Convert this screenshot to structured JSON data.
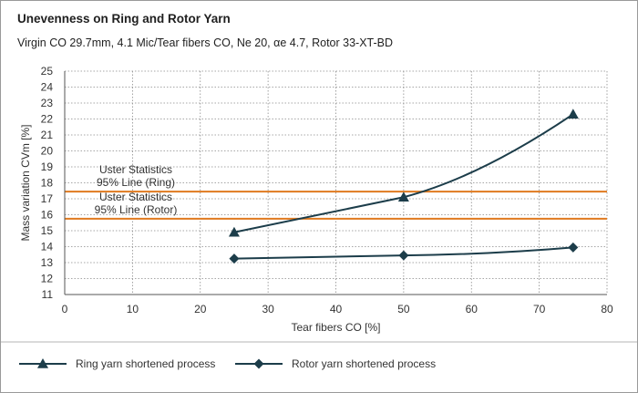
{
  "title": "Unevenness on Ring and Rotor Yarn",
  "subtitle": "Virgin CO 29.7mm, 4.1 Mic/Tear fibers CO, Ne 20, αe 4.7, Rotor 33-XT-BD",
  "chart_data": {
    "type": "line",
    "title": "Unevenness on Ring and Rotor Yarn",
    "subtitle": "Virgin CO 29.7mm, 4.1 Mic/Tear fibers CO, Ne 20, αe 4.7, Rotor 33-XT-BD",
    "xlabel": "Tear fibers CO [%]",
    "ylabel": "Mass variation CVm [%]",
    "xlim": [
      0,
      80
    ],
    "ylim": [
      11,
      25
    ],
    "xticks": [
      0,
      10,
      20,
      30,
      40,
      50,
      60,
      70,
      80
    ],
    "yticks": [
      11,
      12,
      13,
      14,
      15,
      16,
      17,
      18,
      19,
      20,
      21,
      22,
      23,
      24,
      25
    ],
    "grid": "dotted",
    "legend_position": "bottom",
    "series": [
      {
        "name": "Ring yarn shortened process",
        "marker": "triangle",
        "color": "#1c3d4a",
        "x": [
          25,
          50,
          75
        ],
        "y": [
          14.9,
          17.1,
          22.3
        ]
      },
      {
        "name": "Rotor yarn shortened process",
        "marker": "diamond",
        "color": "#1c3d4a",
        "x": [
          25,
          50,
          75
        ],
        "y": [
          13.25,
          13.45,
          13.95
        ]
      }
    ],
    "reference_lines": [
      {
        "label_line1": "Uster Statistics",
        "label_line2": "95% Line (Ring)",
        "y": 17.45,
        "color": "#e07a1f"
      },
      {
        "label_line1": "Uster Statistics",
        "label_line2": "95% Line (Rotor)",
        "y": 15.75,
        "color": "#e07a1f"
      }
    ]
  }
}
